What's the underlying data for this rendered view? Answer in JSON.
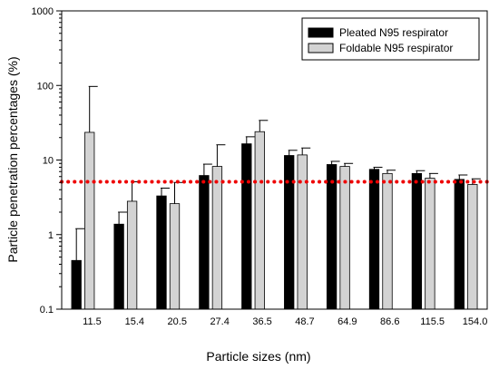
{
  "chart_data": {
    "type": "bar",
    "xlabel": "Particle sizes (nm)",
    "ylabel": "Particle penetration percentages (%)",
    "yscale": "log",
    "ylim": [
      0.1,
      1000
    ],
    "yticks": [
      0.1,
      1,
      10,
      100,
      1000
    ],
    "ytick_labels": [
      "0.1",
      "1",
      "10",
      "100",
      "1000"
    ],
    "categories": [
      "11.5",
      "15.4",
      "20.5",
      "27.4",
      "36.5",
      "48.7",
      "64.9",
      "86.6",
      "115.5",
      "154.0"
    ],
    "series": [
      {
        "name": "Pleated N95 respirator",
        "color": "#000000",
        "values": [
          0.45,
          1.38,
          3.3,
          6.2,
          16.5,
          11.5,
          8.7,
          7.5,
          6.6,
          5.5
        ],
        "errors_upper": [
          1.2,
          2.0,
          4.2,
          8.8,
          20.5,
          13.5,
          9.6,
          8.0,
          7.2,
          6.3
        ]
      },
      {
        "name": "Foldable N95 respirator",
        "color": "#d3d3d3",
        "values": [
          23.5,
          2.8,
          2.6,
          8.2,
          24.0,
          11.7,
          8.2,
          6.6,
          5.7,
          4.7
        ],
        "errors_upper": [
          97,
          5.1,
          5.0,
          16.0,
          34.0,
          14.5,
          9.0,
          7.3,
          6.6,
          5.6
        ]
      }
    ],
    "reference_line": {
      "value": 5.1,
      "color": "#ee0000",
      "style": "dotted"
    },
    "legend_position": "top-right",
    "grid": false
  }
}
